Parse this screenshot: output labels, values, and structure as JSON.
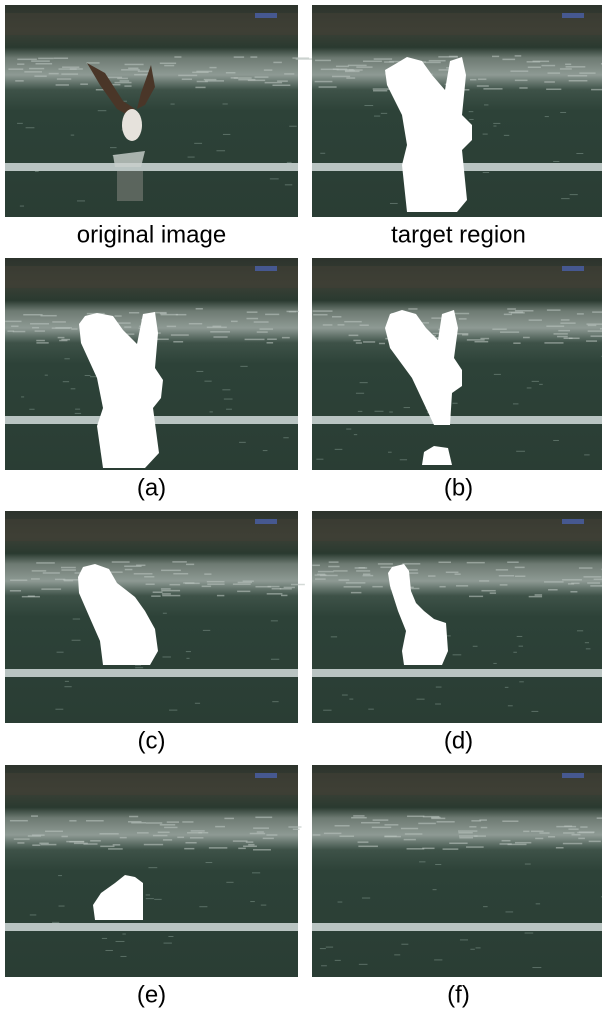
{
  "panels": [
    {
      "caption": "original image"
    },
    {
      "caption": "target region"
    },
    {
      "caption": "(a)"
    },
    {
      "caption": "(b)"
    },
    {
      "caption": "(c)"
    },
    {
      "caption": "(d)"
    },
    {
      "caption": "(e)"
    },
    {
      "caption": "(f)"
    }
  ]
}
